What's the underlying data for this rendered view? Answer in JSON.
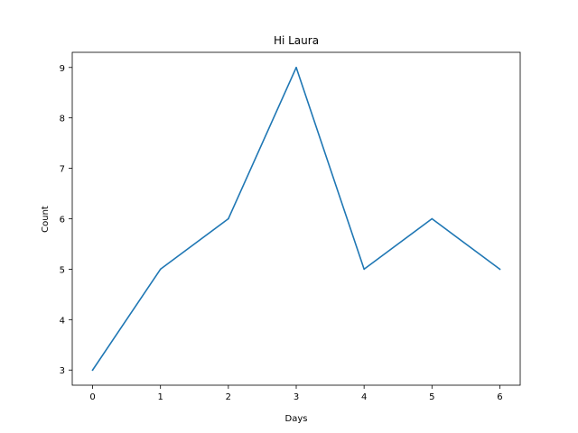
{
  "chart_data": {
    "type": "line",
    "title": "Hi Laura",
    "xlabel": "Days",
    "ylabel": "Count",
    "x": [
      0,
      1,
      2,
      3,
      4,
      5,
      6
    ],
    "series": [
      {
        "values": [
          3,
          5,
          6,
          9,
          5,
          6,
          5
        ],
        "color": "#1f77b4"
      }
    ],
    "xlim": [
      -0.3,
      6.3
    ],
    "ylim": [
      2.7,
      9.3
    ],
    "xticks": [
      0,
      1,
      2,
      3,
      4,
      5,
      6
    ],
    "xtick_labels": [
      "0",
      "1",
      "2",
      "3",
      "4",
      "5",
      "6"
    ],
    "yticks": [
      3,
      4,
      5,
      6,
      7,
      8,
      9
    ],
    "ytick_labels": [
      "3",
      "4",
      "5",
      "6",
      "7",
      "8",
      "9"
    ],
    "grid": false,
    "legend": false
  }
}
